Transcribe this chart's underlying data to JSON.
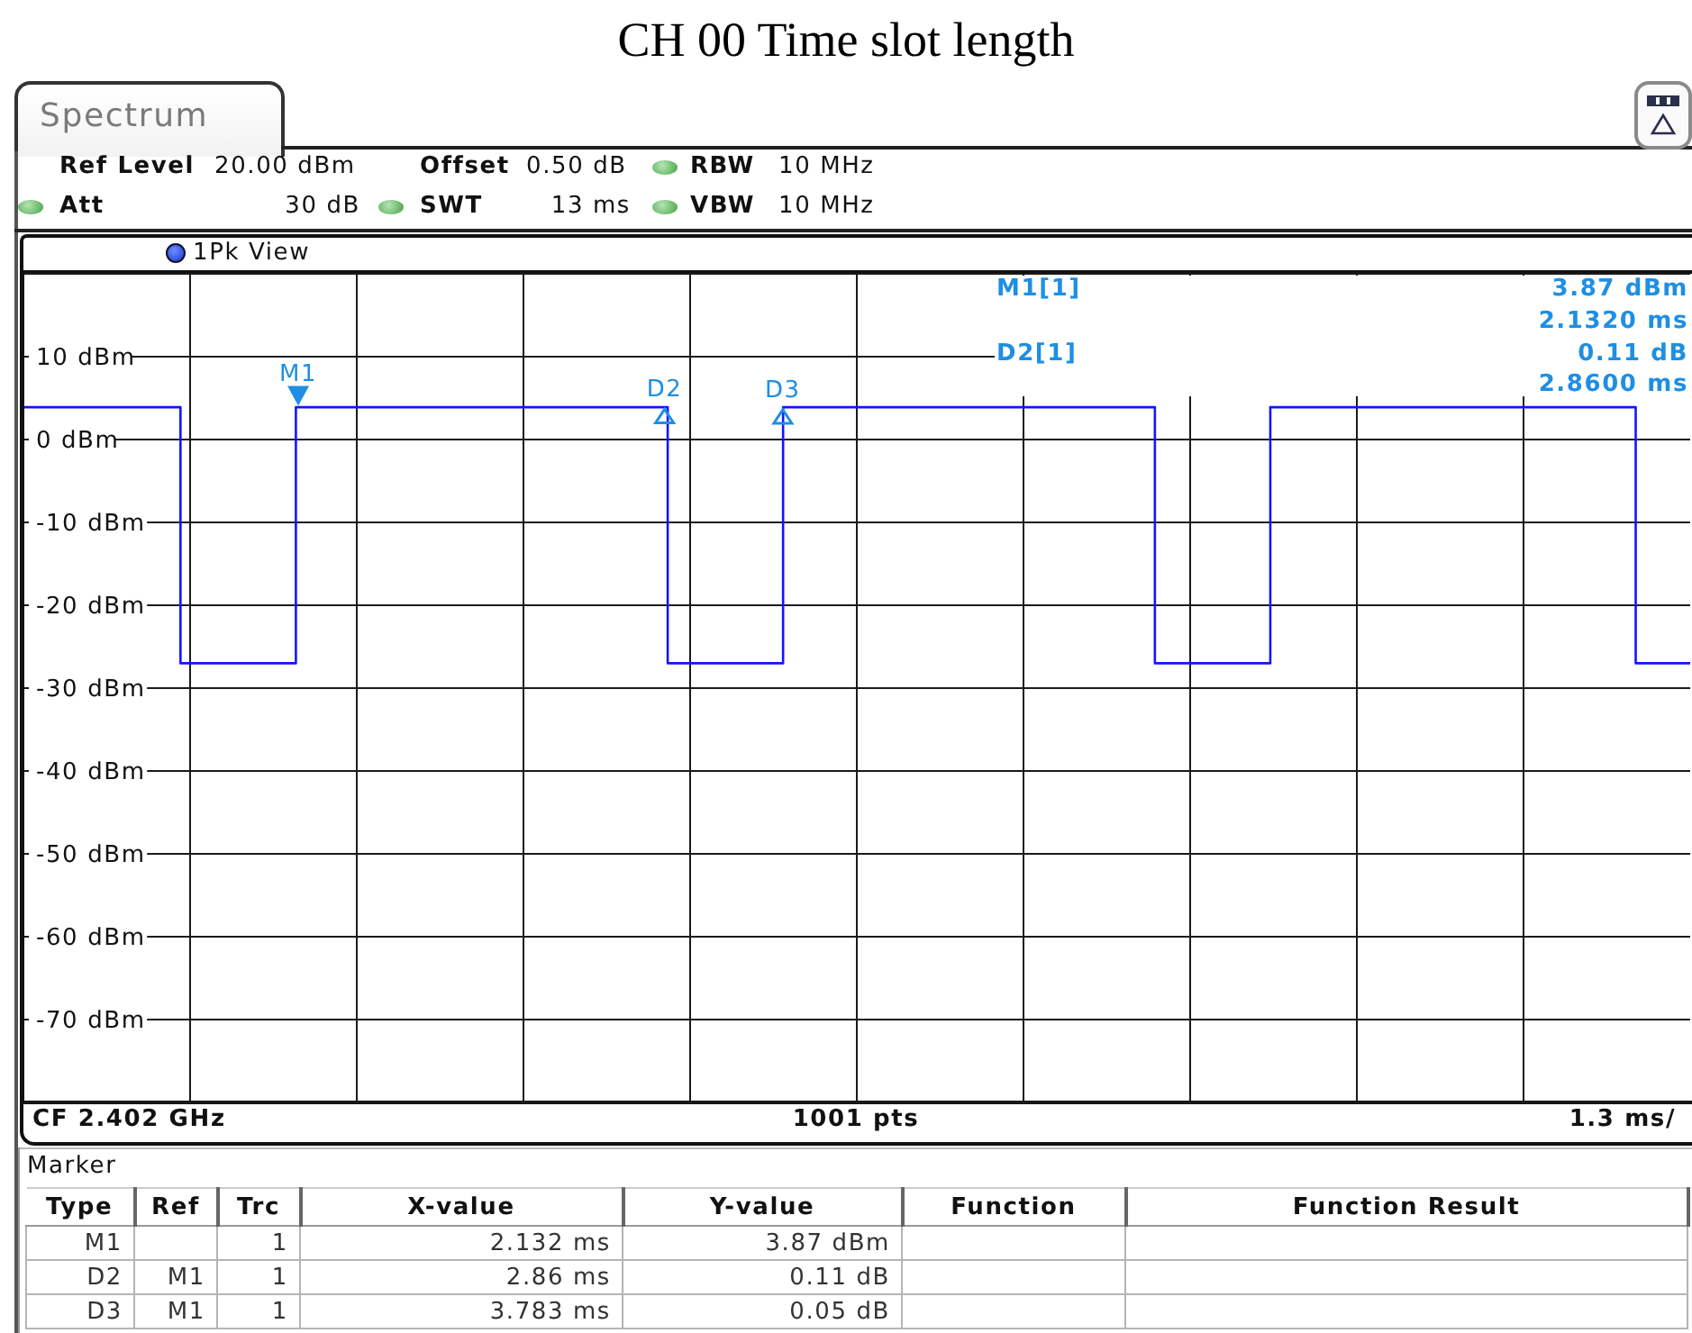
{
  "chart_data": {
    "type": "step",
    "title": "CH 00 Time slot length",
    "categories": [
      null,
      null,
      null,
      null,
      null,
      null,
      null,
      null,
      null,
      null,
      null,
      null,
      null,
      null,
      null,
      null,
      null,
      null,
      null,
      null,
      null,
      null,
      null,
      null,
      null,
      null,
      null,
      null,
      null,
      null,
      null,
      null,
      null,
      null,
      null,
      null,
      null,
      null,
      null,
      null,
      null,
      null,
      null,
      null,
      null,
      null,
      null,
      null,
      null,
      null,
      null,
      null,
      null,
      null,
      null,
      null,
      null,
      null,
      null,
      null,
      null,
      null,
      null,
      null,
      null,
      null,
      null,
      null,
      null,
      null,
      null,
      null,
      null,
      null,
      null,
      null,
      null,
      null,
      null,
      null,
      null,
      null,
      null,
      null,
      null,
      null,
      null,
      null,
      null,
      null,
      null,
      null,
      null,
      null,
      null,
      null,
      null,
      null,
      null,
      null,
      null,
      null,
      null,
      null,
      null,
      null,
      null,
      null,
      null,
      null,
      null,
      null,
      null,
      null,
      null,
      null,
      null,
      null,
      null,
      null,
      null,
      null,
      null,
      null,
      null,
      null,
      null,
      null,
      null,
      null,
      null,
      null,
      null,
      null,
      null,
      null,
      null,
      null,
      null,
      null,
      null,
      null,
      null,
      null,
      null,
      null,
      null,
      null,
      null,
      null,
      null,
      null,
      null,
      null,
      null,
      null,
      null,
      null,
      null,
      null,
      null,
      null,
      null,
      null,
      null,
      null,
      null,
      null,
      null,
      null,
      null,
      null,
      null,
      null,
      null,
      null,
      null,
      null,
      null,
      null,
      null,
      null,
      null,
      null,
      null,
      null,
      null,
      null,
      null,
      null,
      null,
      null,
      null,
      null,
      null,
      null,
      null,
      null,
      null,
      null,
      null,
      null,
      null,
      null,
      null,
      null,
      null,
      null,
      null,
      null,
      null,
      null,
      null,
      null,
      null,
      null,
      null,
      null,
      null,
      null,
      null,
      null,
      null,
      null,
      null,
      null,
      null,
      null,
      null,
      null,
      null,
      null,
      null,
      null,
      null,
      null,
      null,
      null,
      null,
      null,
      null,
      null,
      null,
      null,
      null,
      null,
      null,
      null,
      null,
      null,
      null,
      null,
      null,
      null,
      null,
      null,
      null,
      null,
      null,
      null,
      null
    ],
    "series": [
      {
        "color": "#1414ff",
        "values": [
          3.9,
          3.9,
          3.9,
          3.9,
          3.9,
          3.9,
          3.9,
          3.9,
          3.9,
          3.9,
          3.9,
          3.9,
          3.9,
          3.9,
          3.9,
          3.9,
          3.9,
          3.9,
          3.9,
          3.9,
          3.9,
          3.9,
          3.9,
          3.9,
          3.9,
          -27,
          -27,
          -27,
          -27,
          -27,
          -27,
          -27,
          -27,
          -27,
          -27,
          -27,
          -27,
          -27,
          -27,
          -27,
          -27,
          -27,
          -27,
          3.9,
          3.9,
          3.9,
          3.9,
          3.9,
          3.9,
          3.9,
          3.9,
          3.9,
          3.9,
          3.9,
          3.9,
          3.9,
          3.9,
          3.9,
          3.9,
          3.9,
          3.9,
          3.9,
          3.9,
          3.9,
          3.9,
          3.9,
          3.9,
          3.9,
          3.9,
          3.9,
          3.9,
          3.9,
          3.9,
          3.9,
          3.9,
          3.9,
          3.9,
          3.9,
          3.9,
          3.9,
          3.9,
          3.9,
          3.9,
          3.9,
          3.9,
          3.9,
          3.9,
          3.9,
          3.9,
          3.9,
          3.9,
          3.9,
          3.9,
          3.9,
          3.9,
          3.9,
          3.9,
          3.9,
          3.9,
          3.9,
          3.9,
          -27,
          -27,
          -27,
          -27,
          -27,
          -27,
          -27,
          -27,
          -27,
          -27,
          -27,
          -27,
          -27,
          -27,
          -27,
          -27,
          -27,
          -27,
          3.9,
          3.9,
          3.9,
          3.9,
          3.9,
          3.9,
          3.9,
          3.9,
          3.9,
          3.9,
          3.9,
          3.9,
          3.9,
          3.9,
          3.9,
          3.9,
          3.9,
          3.9,
          3.9,
          3.9,
          3.9,
          3.9,
          3.9,
          3.9,
          3.9,
          3.9,
          3.9,
          3.9,
          3.9,
          3.9,
          3.9,
          3.9,
          3.9,
          3.9,
          3.9,
          3.9,
          3.9,
          3.9,
          3.9,
          3.9,
          3.9,
          3.9,
          3.9,
          3.9,
          3.9,
          3.9,
          3.9,
          3.9,
          3.9,
          3.9,
          3.9,
          3.9,
          3.9,
          3.9,
          3.9,
          3.9,
          3.9,
          3.9,
          -27,
          -27,
          -27,
          -27,
          -27,
          -27,
          -27,
          -27,
          -27,
          -27,
          -27,
          -27,
          -27,
          -27,
          -27,
          -27,
          -27,
          -27,
          3.9,
          3.9,
          3.9,
          3.9,
          3.9,
          3.9,
          3.9,
          3.9,
          3.9,
          3.9,
          3.9,
          3.9,
          3.9,
          3.9,
          3.9,
          3.9,
          3.9,
          3.9,
          3.9,
          3.9,
          3.9,
          3.9,
          3.9,
          3.9,
          3.9,
          3.9,
          3.9,
          3.9,
          3.9,
          3.9,
          3.9,
          3.9,
          3.9,
          3.9,
          3.9,
          3.9,
          3.9,
          3.9,
          3.9,
          3.9,
          3.9,
          3.9,
          3.9,
          3.9,
          3.9,
          3.9,
          3.9,
          3.9,
          3.9,
          3.9,
          3.9,
          3.9,
          3.9,
          3.9,
          3.9,
          3.9,
          3.9,
          -27,
          -27,
          -27,
          -27,
          -27,
          -27,
          -27,
          -27,
          -27
        ]
      }
    ],
    "ylim": [
      -80,
      20
    ],
    "yticks": [
      {
        "value": 10,
        "label": "10 dBm"
      },
      {
        "value": 0,
        "label": "0 dBm"
      },
      {
        "value": -10,
        "label": "-10 dBm"
      },
      {
        "value": -20,
        "label": "-20 dBm"
      },
      {
        "value": -30,
        "label": "-30 dBm"
      },
      {
        "value": -40,
        "label": "-40 dBm"
      },
      {
        "value": -50,
        "label": "-50 dBm"
      },
      {
        "value": -60,
        "label": "-60 dBm"
      },
      {
        "value": -70,
        "label": "-70 dBm"
      }
    ],
    "grid": true,
    "annotations": [
      "Spectrum",
      "Ref Level",
      "20.00 dBm",
      "Offset",
      "0.50 dB",
      "RBW",
      "10 MHz",
      "Att",
      "30 dB",
      "SWT",
      "13 ms",
      "VBW",
      "10 MHz",
      "1Pk View",
      "M1[1]",
      "3.87 dBm",
      "2.1320 ms",
      "D2[1]",
      "0.11 dB",
      "2.8600 ms",
      {
        "text": "M1",
        "y": 3.87
      },
      {
        "text": "D2",
        "y": 3.98
      },
      {
        "text": "D3",
        "y": 3.92
      },
      "CF 2.402 GHz",
      "1001 pts",
      "1.3 ms/",
      "Marker",
      "Type",
      "Ref",
      "Trc",
      "X-value",
      "Y-value",
      "Function",
      "Function Result",
      "M1",
      "1",
      "2.132 ms",
      "3.87 dBm",
      "D2",
      "M1",
      "1",
      "2.86 ms",
      "0.11 dB",
      "D3",
      "M1",
      "1",
      "3.783 ms",
      "0.05 dB"
    ]
  }
}
